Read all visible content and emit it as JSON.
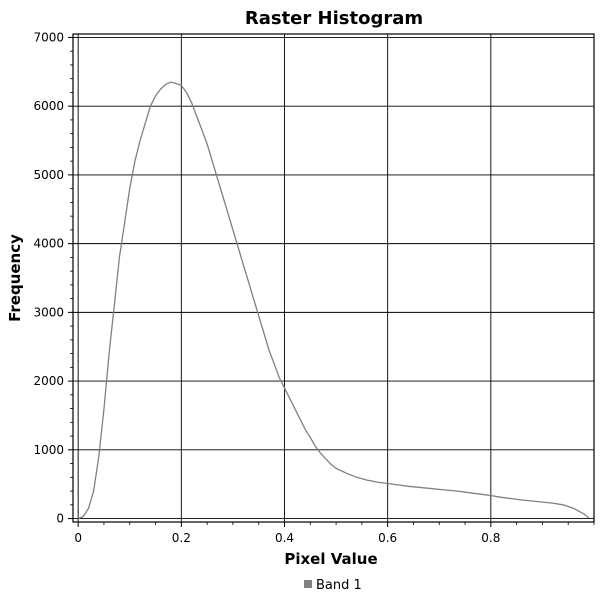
{
  "chart_data": {
    "type": "line",
    "title": "Raster Histogram",
    "xlabel": "Pixel Value",
    "ylabel": "Frequency",
    "xlim": [
      -0.01,
      1.0
    ],
    "ylim": [
      -50,
      7050
    ],
    "x_ticks": [
      0,
      0.2,
      0.4,
      0.6,
      0.8
    ],
    "x_tick_labels": [
      "0",
      "0.2",
      "0.4",
      "0.6",
      "0.8"
    ],
    "y_ticks": [
      0,
      1000,
      2000,
      3000,
      4000,
      5000,
      6000,
      7000
    ],
    "y_tick_labels": [
      "0",
      "1000",
      "2000",
      "3000",
      "4000",
      "5000",
      "6000",
      "7000"
    ],
    "grid": true,
    "legend_position": "bottom-center",
    "series": [
      {
        "name": "Band 1",
        "color": "#808080",
        "x": [
          0.0,
          0.01,
          0.02,
          0.03,
          0.04,
          0.05,
          0.06,
          0.07,
          0.08,
          0.09,
          0.1,
          0.11,
          0.12,
          0.13,
          0.14,
          0.15,
          0.16,
          0.17,
          0.18,
          0.19,
          0.2,
          0.21,
          0.22,
          0.23,
          0.24,
          0.25,
          0.26,
          0.27,
          0.28,
          0.29,
          0.3,
          0.31,
          0.32,
          0.33,
          0.34,
          0.35,
          0.36,
          0.37,
          0.38,
          0.39,
          0.4,
          0.41,
          0.42,
          0.43,
          0.44,
          0.45,
          0.46,
          0.47,
          0.48,
          0.49,
          0.5,
          0.52,
          0.54,
          0.56,
          0.58,
          0.6,
          0.62,
          0.64,
          0.66,
          0.68,
          0.7,
          0.72,
          0.74,
          0.76,
          0.78,
          0.8,
          0.82,
          0.84,
          0.86,
          0.88,
          0.9,
          0.92,
          0.94,
          0.96,
          0.98,
          0.99
        ],
        "values": [
          0,
          30,
          150,
          400,
          900,
          1600,
          2400,
          3100,
          3800,
          4300,
          4800,
          5200,
          5500,
          5750,
          6000,
          6150,
          6250,
          6320,
          6350,
          6330,
          6300,
          6200,
          6050,
          5850,
          5650,
          5450,
          5200,
          4950,
          4700,
          4450,
          4200,
          3950,
          3700,
          3450,
          3200,
          2950,
          2700,
          2450,
          2250,
          2050,
          1900,
          1750,
          1600,
          1450,
          1300,
          1180,
          1050,
          950,
          870,
          790,
          730,
          660,
          600,
          560,
          530,
          510,
          490,
          470,
          455,
          440,
          425,
          410,
          395,
          375,
          355,
          335,
          310,
          290,
          270,
          255,
          240,
          225,
          200,
          150,
          70,
          10
        ]
      }
    ]
  }
}
